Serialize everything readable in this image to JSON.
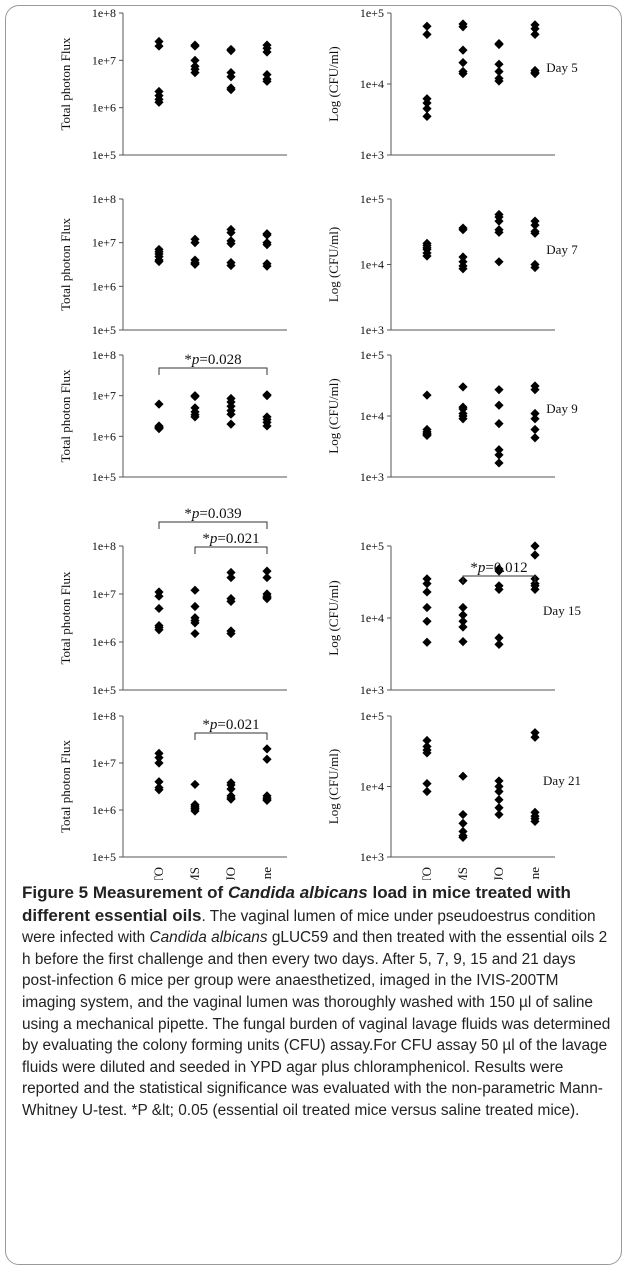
{
  "figure": {
    "caption_parts": [
      {
        "text": "Figure 5 Measurement of ",
        "style": "title"
      },
      {
        "text": "Candida albicans",
        "style": "title-italic"
      },
      {
        "text": " load in mice treated with different essential oils",
        "style": "title"
      },
      {
        "text": ". The vaginal lumen of mice under pseudoestrus condition were infected with ",
        "style": "normal"
      },
      {
        "text": "Candida albicans",
        "style": "italic"
      },
      {
        "text": " gLUC59 and then treated with the essential oils 2 h before the first challenge and then every two days. After 5, 7, 9, 15 and 21 days post-infection 6 mice per group were anaesthetized, imaged in the IVIS-200TM imaging system, and the vaginal lumen was thoroughly washed with 150 µl of saline using a mechanical pipette. The fungal burden of vaginal lavage fluids was determined by evaluating the colony forming units (CFU) assay.For CFU assay 50 µl of the lavage fluids were diluted and seeded in YPD agar plus chloramphenicol. Results were reported and the statistical significance was evaluated with the non-parametric Mann-Whitney U-test. *P &lt; 0.05 (essential oil treated mice versus saline treated mice).",
        "style": "normal"
      }
    ]
  },
  "chart_data": [
    {
      "type": "scatter",
      "panel": "flux-day5",
      "ylabel": "Total photon Flux",
      "yscale": "log",
      "ylim": [
        "1e+5",
        "1e+8"
      ],
      "yticks": [
        "1e+5",
        "1e+6",
        "1e+7",
        "1e+8"
      ],
      "categories": [
        "TTO",
        "EOMS",
        "JO",
        "Saline"
      ],
      "values": [
        [
          25000000,
          20000000,
          2200000,
          1800000,
          1500000,
          1300000
        ],
        [
          21000000,
          20000000,
          10000000,
          7500000,
          6500000,
          5500000
        ],
        [
          17000000,
          16000000,
          5500000,
          4500000,
          2600000,
          2400000
        ],
        [
          21000000,
          18000000,
          15000000,
          5000000,
          4000000,
          3600000
        ]
      ],
      "day_label": "",
      "significance": []
    },
    {
      "type": "scatter",
      "panel": "cfu-day5",
      "ylabel": "Log (CFU/ml)",
      "yscale": "log",
      "ylim": [
        "1e+3",
        "1e+5"
      ],
      "yticks": [
        "1e+3",
        "1e+4",
        "1e+5"
      ],
      "categories": [
        "TTO",
        "EOMS",
        "JO",
        "Saline"
      ],
      "values": [
        [
          65000,
          50000,
          6200,
          5400,
          4500,
          3500
        ],
        [
          70000,
          64000,
          30000,
          20000,
          15000,
          14000
        ],
        [
          37000,
          36000,
          19000,
          15000,
          12000,
          11000
        ],
        [
          68000,
          60000,
          50000,
          15500,
          14500,
          14000
        ]
      ],
      "day_label": "Day 5",
      "significance": []
    },
    {
      "type": "scatter",
      "panel": "flux-day7",
      "ylabel": "Total photon Flux",
      "yscale": "log",
      "ylim": [
        "1e+5",
        "1e+8"
      ],
      "yticks": [
        "1e+5",
        "1e+6",
        "1e+7",
        "1e+8"
      ],
      "categories": [
        "TTO",
        "EOMS",
        "JO",
        "Saline"
      ],
      "values": [
        [
          7000000,
          6200000,
          5500000,
          4800000,
          4000000,
          3700000
        ],
        [
          12000000,
          10000000,
          4000000,
          3500000,
          3400000,
          3200000
        ],
        [
          20000000,
          17000000,
          11000000,
          9500000,
          3500000,
          3000000
        ],
        [
          16000000,
          15000000,
          10000000,
          9000000,
          3300000,
          2900000
        ]
      ],
      "day_label": "",
      "significance": []
    },
    {
      "type": "scatter",
      "panel": "cfu-day7",
      "ylabel": "Log (CFU/ml)",
      "yscale": "log",
      "ylim": [
        "1e+3",
        "1e+5"
      ],
      "yticks": [
        "1e+3",
        "1e+4",
        "1e+5"
      ],
      "categories": [
        "TTO",
        "EOMS",
        "JO",
        "Saline"
      ],
      "values": [
        [
          21000,
          18000,
          15000,
          13500,
          17000,
          19500
        ],
        [
          36000,
          34000,
          13000,
          11000,
          9500,
          8600
        ],
        [
          58000,
          53000,
          46000,
          34000,
          31000,
          11000
        ],
        [
          46000,
          40000,
          32000,
          30000,
          10000,
          9000
        ]
      ],
      "day_label": "Day 7",
      "significance": []
    },
    {
      "type": "scatter",
      "panel": "flux-day9",
      "ylabel": "Total photon Flux",
      "yscale": "log",
      "ylim": [
        "1e+5",
        "1e+8"
      ],
      "yticks": [
        "1e+5",
        "1e+6",
        "1e+7",
        "1e+8"
      ],
      "categories": [
        "TTO",
        "EOMS",
        "JO",
        "Saline"
      ],
      "values": [
        [
          6200000,
          1800000,
          1700000,
          1650000,
          1600000,
          1550000
        ],
        [
          10000000,
          9500000,
          5000000,
          4000000,
          3400000,
          3000000
        ],
        [
          8500000,
          7000000,
          5500000,
          4300000,
          3500000,
          2000000
        ],
        [
          10500000,
          10000000,
          3000000,
          2600000,
          2200000,
          1800000
        ]
      ],
      "day_label": "",
      "significance": [
        {
          "from": "TTO",
          "to": "Saline",
          "label": "*p=0.028",
          "p_prefix": "*",
          "p_var": "p",
          "p_value": "=0.028"
        }
      ]
    },
    {
      "type": "scatter",
      "panel": "cfu-day9",
      "ylabel": "Log (CFU/ml)",
      "yscale": "log",
      "ylim": [
        "1e+3",
        "1e+5"
      ],
      "yticks": [
        "1e+3",
        "1e+4",
        "1e+5"
      ],
      "categories": [
        "TTO",
        "EOMS",
        "JO",
        "Saline"
      ],
      "values": [
        [
          22000,
          6000,
          5500,
          5000,
          5200,
          4800
        ],
        [
          30000,
          14000,
          13000,
          11000,
          10000,
          9000
        ],
        [
          27000,
          15000,
          7500,
          2800,
          2300,
          1700
        ],
        [
          31000,
          27000,
          11000,
          9000,
          6000,
          4400
        ]
      ],
      "day_label": "Day 9",
      "significance": []
    },
    {
      "type": "scatter",
      "panel": "flux-day15",
      "ylabel": "Total photon Flux",
      "yscale": "log",
      "ylim": [
        "1e+5",
        "1e+8"
      ],
      "yticks": [
        "1e+5",
        "1e+6",
        "1e+7",
        "1e+8"
      ],
      "categories": [
        "TTO",
        "EOMS",
        "JO",
        "Saline"
      ],
      "values": [
        [
          11000000,
          9000000,
          5000000,
          2200000,
          2000000,
          1800000
        ],
        [
          12000000,
          5500000,
          3200000,
          2800000,
          2500000,
          1500000
        ],
        [
          28000000,
          22000000,
          8000000,
          7000000,
          1700000,
          1500000
        ],
        [
          30000000,
          22000000,
          10000000,
          9000000,
          8500000,
          8000000
        ]
      ],
      "day_label": "Day 15",
      "significance": [
        {
          "from": "TTO",
          "to": "Saline",
          "label": "*p=0.039",
          "p_prefix": "*",
          "p_var": "p",
          "p_value": "=0.039"
        },
        {
          "from": "EOMS",
          "to": "Saline",
          "label": "*p=0.021",
          "p_prefix": "*",
          "p_var": "p",
          "p_value": "=0.021"
        }
      ]
    },
    {
      "type": "scatter",
      "panel": "cfu-day15",
      "ylabel": "Log (CFU/ml)",
      "yscale": "log",
      "ylim": [
        "1e+3",
        "1e+5"
      ],
      "yticks": [
        "1e+3",
        "1e+4",
        "1e+5"
      ],
      "categories": [
        "TTO",
        "EOMS",
        "JO",
        "Saline"
      ],
      "values": [
        [
          35000,
          30000,
          23000,
          14000,
          9000,
          4600
        ],
        [
          33000,
          14000,
          11000,
          9000,
          7500,
          4700
        ],
        [
          48000,
          45000,
          28000,
          25000,
          5300,
          4300
        ],
        [
          100000,
          75000,
          35000,
          30000,
          28000,
          25000
        ]
      ],
      "day_label": "",
      "significance": [
        {
          "from": "EOMS",
          "to": "Saline",
          "label": "*p=0.012",
          "p_prefix": "*",
          "p_var": "p",
          "p_value": "=0.012"
        }
      ]
    },
    {
      "type": "scatter",
      "panel": "flux-day21",
      "ylabel": "Total photon Flux",
      "yscale": "log",
      "ylim": [
        "1e+5",
        "1e+8"
      ],
      "yticks": [
        "1e+5",
        "1e+6",
        "1e+7",
        "1e+8"
      ],
      "categories": [
        "TTO",
        "EOMS",
        "JO",
        "Saline"
      ],
      "values": [
        [
          16000000,
          13000000,
          10000000,
          4000000,
          3000000,
          2700000
        ],
        [
          3500000,
          1300000,
          1200000,
          1100000,
          1050000,
          950000
        ],
        [
          3800000,
          3400000,
          2800000,
          2000000,
          1800000,
          1700000
        ],
        [
          20000000,
          12000000,
          2000000,
          1800000,
          1700000,
          1600000
        ]
      ],
      "day_label": "",
      "significance": [
        {
          "from": "EOMS",
          "to": "Saline",
          "label": "*p=0.021",
          "p_prefix": "*",
          "p_var": "p",
          "p_value": "=0.021"
        }
      ]
    },
    {
      "type": "scatter",
      "panel": "cfu-day21",
      "ylabel": "Log (CFU/ml)",
      "yscale": "log",
      "ylim": [
        "1e+3",
        "1e+5"
      ],
      "yticks": [
        "1e+3",
        "1e+4",
        "1e+5"
      ],
      "categories": [
        "TTO",
        "EOMS",
        "JO",
        "Saline"
      ],
      "values": [
        [
          45000,
          37000,
          33000,
          30000,
          11000,
          8500
        ],
        [
          14000,
          4000,
          3000,
          2300,
          2000,
          1900
        ],
        [
          12000,
          10000,
          8500,
          6500,
          5000,
          4000
        ],
        [
          58000,
          50000,
          4300,
          3800,
          3500,
          3200
        ]
      ],
      "day_label": "Day 21",
      "significance": []
    }
  ]
}
